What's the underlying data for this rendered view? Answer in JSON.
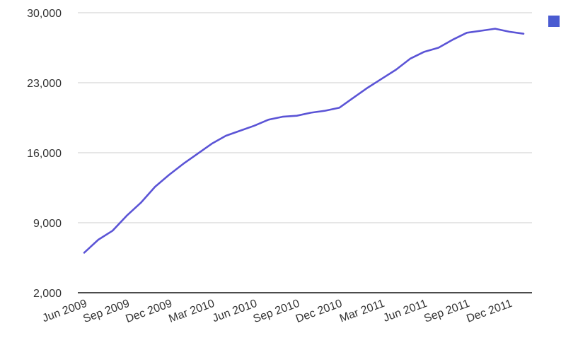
{
  "chart_data": {
    "type": "line",
    "title": "",
    "xlabel": "",
    "ylabel": "",
    "ylim": [
      2000,
      30000
    ],
    "yticks": [
      "30,000",
      "23,000",
      "16,000",
      "9,000",
      "2,000"
    ],
    "ytick_values": [
      30000,
      23000,
      16000,
      9000,
      2000
    ],
    "xticks": [
      "Jun 2009",
      "Sep 2009",
      "Dec 2009",
      "Mar 2010",
      "Jun 2010",
      "Sep 2010",
      "Dec 2010",
      "Mar 2011",
      "Jun 2011",
      "Sep 2011",
      "Dec 2011"
    ],
    "grid": true,
    "legend": "top-right",
    "series": [
      {
        "color": "#5b54d6",
        "x": [
          "Jun 2009",
          "Jul 2009",
          "Aug 2009",
          "Sep 2009",
          "Oct 2009",
          "Nov 2009",
          "Dec 2009",
          "Jan 2010",
          "Feb 2010",
          "Mar 2010",
          "Apr 2010",
          "May 2010",
          "Jun 2010",
          "Jul 2010",
          "Aug 2010",
          "Sep 2010",
          "Oct 2010",
          "Nov 2010",
          "Dec 2010",
          "Jan 2011",
          "Feb 2011",
          "Mar 2011",
          "Apr 2011",
          "May 2011",
          "Jun 2011",
          "Jul 2011",
          "Aug 2011",
          "Sep 2011",
          "Oct 2011",
          "Nov 2011",
          "Dec 2011",
          "Jan 2012"
        ],
        "values": [
          6000,
          7300,
          8200,
          9700,
          11000,
          12600,
          13800,
          14900,
          15900,
          16900,
          17700,
          18200,
          18700,
          19300,
          19600,
          19700,
          20000,
          20200,
          20500,
          21500,
          22500,
          23400,
          24300,
          25400,
          26100,
          26500,
          27300,
          28000,
          28200,
          28400,
          28100,
          27900
        ]
      }
    ],
    "legend_swatch_color": "#4a5bd1"
  }
}
